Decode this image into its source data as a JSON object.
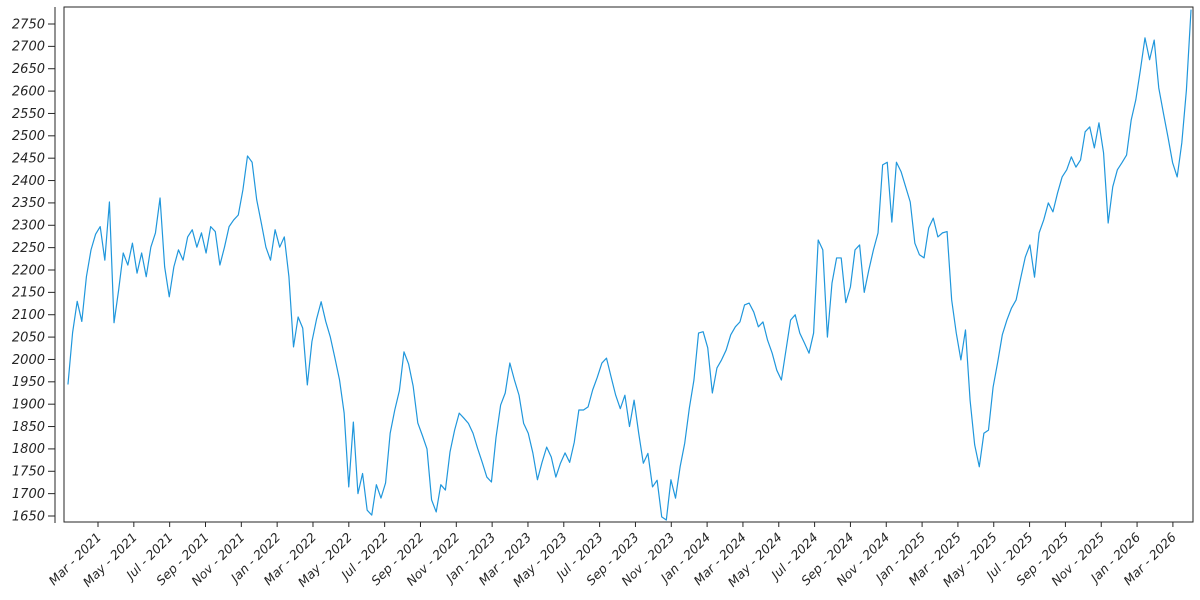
{
  "figure": {
    "background_color": "#ffffff",
    "frame_color": "#262626",
    "tick_label_color": "#262626",
    "line_color": "#2097dc"
  },
  "chart_data": {
    "type": "line",
    "title": "",
    "xlabel": "",
    "ylabel": "",
    "grid": false,
    "legend": "none",
    "x_range": [
      "Jan 2021",
      "Apr 2026"
    ],
    "sampling": "approx weekly samples, uniform spacing",
    "x_tick_labels": [
      "Mar - 2021",
      "May - 2021",
      "Jul - 2021",
      "Sep - 2021",
      "Nov - 2021",
      "Jan - 2022",
      "Mar - 2022",
      "May - 2022",
      "Jul - 2022",
      "Sep - 2022",
      "Nov - 2022",
      "Jan - 2023",
      "Mar - 2023",
      "May - 2023",
      "Jul - 2023",
      "Sep - 2023",
      "Nov - 2023",
      "Jan - 2024",
      "Mar - 2024",
      "May - 2024",
      "Jul - 2024",
      "Sep - 2024",
      "Nov - 2024",
      "Jan - 2025",
      "Mar - 2025",
      "May - 2025",
      "Jul - 2025",
      "Sep - 2025",
      "Nov - 2025",
      "Jan - 2026",
      "Mar - 2026"
    ],
    "y_ticks": [
      1650,
      1700,
      1750,
      1800,
      1850,
      1900,
      1950,
      2000,
      2050,
      2100,
      2150,
      2200,
      2250,
      2300,
      2350,
      2400,
      2450,
      2500,
      2550,
      2600,
      2650,
      2700,
      2750
    ],
    "ylim": [
      1636,
      2786
    ],
    "series": [
      {
        "name": "series-1",
        "color": "#2097dc",
        "values": [
          1945,
          2060,
          2130,
          2085,
          2185,
          2245,
          2280,
          2297,
          2222,
          2352,
          2082,
          2155,
          2238,
          2211,
          2260,
          2193,
          2238,
          2185,
          2251,
          2283,
          2361,
          2207,
          2140,
          2207,
          2245,
          2222,
          2274,
          2290,
          2251,
          2283,
          2238,
          2297,
          2286,
          2211,
          2251,
          2297,
          2312,
          2323,
          2379,
          2455,
          2441,
          2357,
          2305,
          2251,
          2222,
          2290,
          2251,
          2274,
          2185,
          2028,
          2095,
          2070,
          1943,
          2040,
          2090,
          2129,
          2085,
          2050,
          2003,
          1954,
          1880,
          1715,
          1860,
          1700,
          1745,
          1663,
          1652,
          1720,
          1690,
          1724,
          1835,
          1887,
          1930,
          2017,
          1990,
          1940,
          1858,
          1830,
          1800,
          1686,
          1659,
          1720,
          1708,
          1793,
          1842,
          1880,
          1869,
          1857,
          1835,
          1801,
          1770,
          1737,
          1726,
          1826,
          1898,
          1925,
          1992,
          1954,
          1920,
          1857,
          1835,
          1791,
          1731,
          1770,
          1804,
          1782,
          1737,
          1768,
          1791,
          1770,
          1815,
          1887,
          1887,
          1894,
          1932,
          1960,
          1992,
          2003,
          1961,
          1920,
          1890,
          1920,
          1850,
          1909,
          1835,
          1768,
          1790,
          1715,
          1730,
          1648,
          1641,
          1731,
          1690,
          1760,
          1813,
          1891,
          1954,
          2059,
          2062,
          2026,
          1925,
          1981,
          1999,
          2021,
          2055,
          2073,
          2084,
          2122,
          2126,
          2106,
          2073,
          2084,
          2043,
          2014,
          1976,
          1954,
          2021,
          2088,
          2100,
          2059,
          2037,
          2014,
          2059,
          2267,
          2245,
          2050,
          2171,
          2227,
          2227,
          2127,
          2162,
          2245,
          2256,
          2150,
          2200,
          2245,
          2283,
          2435,
          2441,
          2307,
          2441,
          2420,
          2386,
          2352,
          2260,
          2234,
          2227,
          2294,
          2316,
          2274,
          2283,
          2286,
          2133,
          2059,
          1999,
          2066,
          1909,
          1809,
          1760,
          1835,
          1842,
          1938,
          1994,
          2055,
          2088,
          2115,
          2133,
          2182,
          2229,
          2256,
          2184,
          2283,
          2312,
          2350,
          2330,
          2372,
          2408,
          2424,
          2453,
          2430,
          2446,
          2509,
          2520,
          2473,
          2529,
          2462,
          2305,
          2386,
          2424,
          2440,
          2457,
          2535,
          2580,
          2647,
          2719,
          2670,
          2714,
          2607,
          2551,
          2497,
          2440,
          2408,
          2484,
          2602,
          2781
        ]
      }
    ]
  }
}
